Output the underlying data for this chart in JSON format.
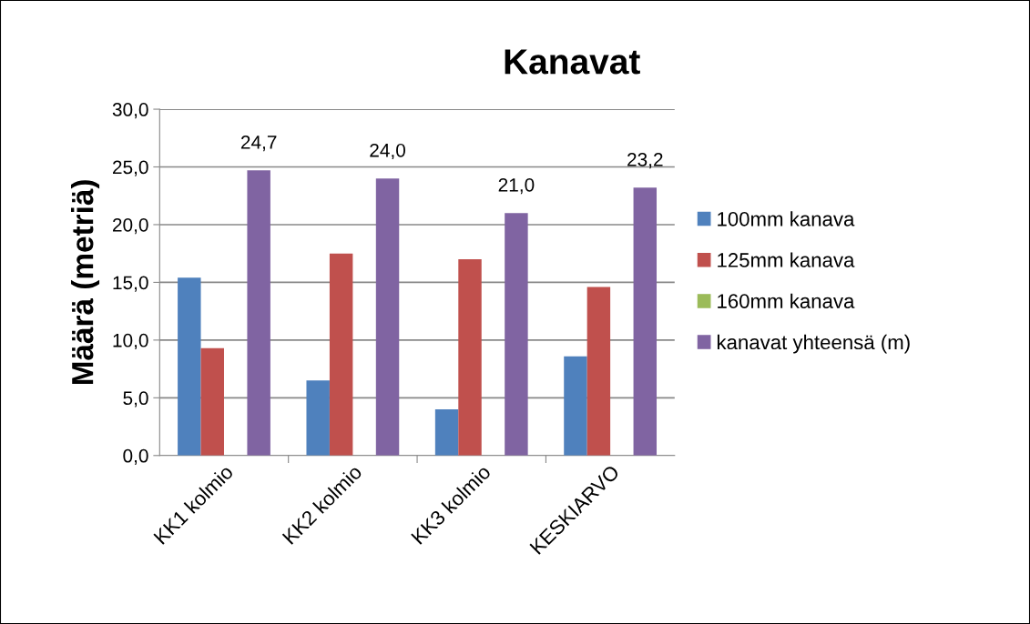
{
  "chart_data": {
    "type": "bar",
    "title": "Kanavat",
    "ylabel": "Määrä (metriä)",
    "categories": [
      "KK1 kolmio",
      "KK2 kolmio",
      "KK3 kolmio",
      "KESKIARVO"
    ],
    "series": [
      {
        "name": "100mm kanava",
        "color": "#4f81bd",
        "values": [
          15.4,
          6.5,
          4.0,
          8.6
        ]
      },
      {
        "name": "125mm kanava",
        "color": "#c0504d",
        "values": [
          9.3,
          17.5,
          17.0,
          14.6
        ]
      },
      {
        "name": "160mm kanava",
        "color": "#9bbb59",
        "values": [
          0,
          0,
          0,
          0
        ]
      },
      {
        "name": "kanavat yhteensä (m)",
        "color": "#8064a2",
        "values": [
          24.7,
          24.0,
          21.0,
          23.2
        ],
        "value_labels": [
          "24,7",
          "24,0",
          "21,0",
          "23,2"
        ]
      }
    ],
    "ylim": [
      0,
      30
    ],
    "yticks": [
      {
        "value": 0,
        "label": "0,0"
      },
      {
        "value": 5,
        "label": "5,0"
      },
      {
        "value": 10,
        "label": "10,0"
      },
      {
        "value": 15,
        "label": "15,0"
      },
      {
        "value": 20,
        "label": "20,0"
      },
      {
        "value": 25,
        "label": "25,0"
      },
      {
        "value": 30,
        "label": "30,0"
      }
    ],
    "grid": "y",
    "legend": "right"
  }
}
